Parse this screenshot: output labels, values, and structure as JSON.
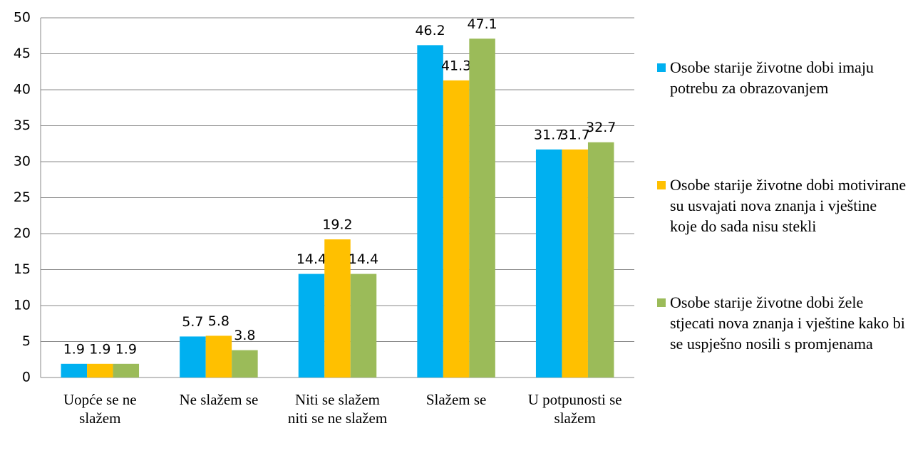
{
  "chart_data": {
    "type": "bar",
    "categories": [
      "Uopće se ne slažem",
      "Ne slažem se",
      "Niti se slažem niti se ne slažem",
      "Slažem se",
      "U potpunosti se slažem"
    ],
    "series": [
      {
        "name": "Osobe starije životne dobi imaju potrebu za obrazovanjem",
        "color": "#00b0f0",
        "values": [
          1.9,
          5.7,
          14.4,
          46.2,
          31.7
        ]
      },
      {
        "name": "Osobe starije životne dobi motivirane su usvajati nova znanja i vještine koje do sada nisu stekli",
        "color": "#ffc000",
        "values": [
          1.9,
          5.8,
          19.2,
          41.3,
          31.7
        ]
      },
      {
        "name": "Osobe starije životne dobi žele stjecati nova znanja i vještine kako bi se uspješno nosili s promjenama",
        "color": "#9bbb59",
        "values": [
          1.9,
          3.8,
          14.4,
          47.1,
          32.7
        ]
      }
    ],
    "ylim": [
      0,
      50
    ],
    "yticks": [
      0,
      5,
      10,
      15,
      20,
      25,
      30,
      35,
      40,
      45,
      50
    ],
    "grid": true,
    "legend": "right"
  }
}
